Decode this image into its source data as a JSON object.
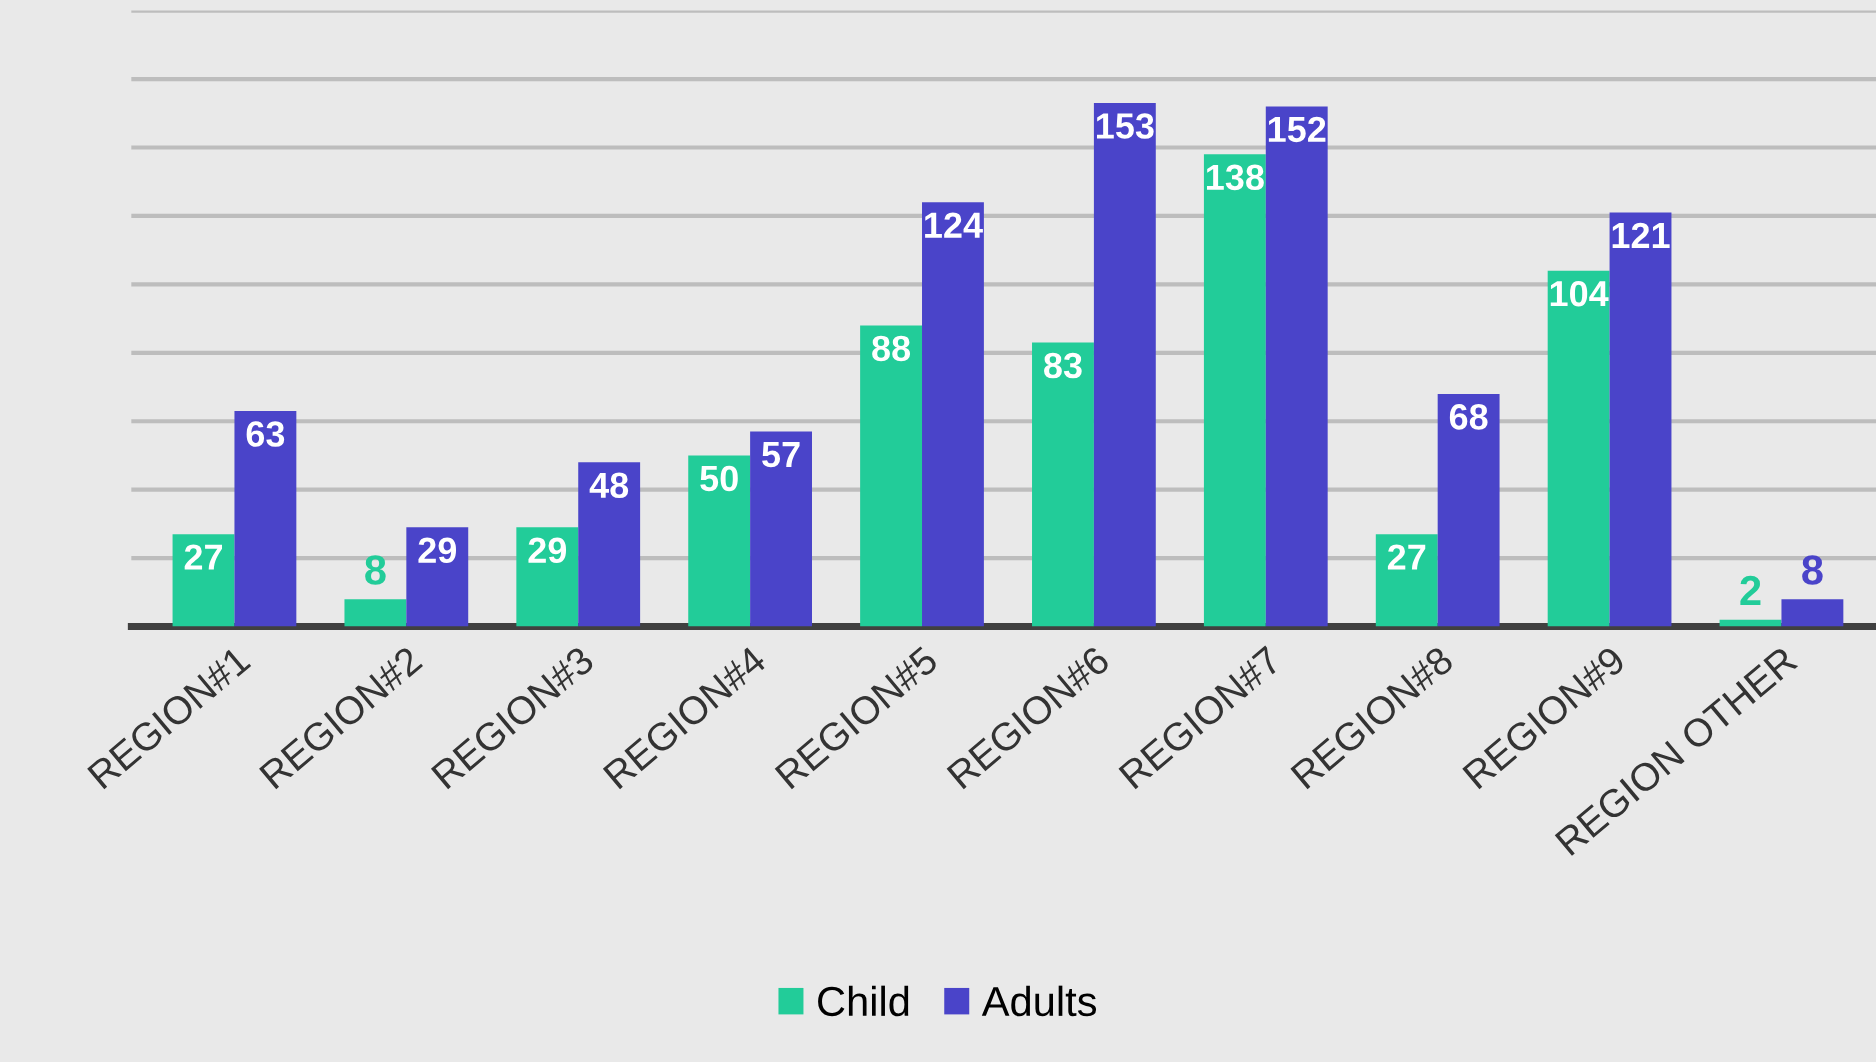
{
  "chart_data": {
    "type": "bar",
    "categories": [
      "REGION#1",
      "REGION#2",
      "REGION#3",
      "REGION#4",
      "REGION#5",
      "REGION#6",
      "REGION#7",
      "REGION#8",
      "REGION#9",
      "REGION OTHER"
    ],
    "series": [
      {
        "name": "Child",
        "color": "#22cc99",
        "values": [
          27,
          8,
          29,
          50,
          88,
          83,
          138,
          27,
          104,
          2
        ]
      },
      {
        "name": "Adults",
        "color": "#4a44c9",
        "values": [
          63,
          29,
          48,
          57,
          124,
          153,
          152,
          68,
          121,
          8
        ]
      }
    ],
    "ylim": [
      0,
      180
    ],
    "yticks": [
      {
        "value": 0,
        "label": null
      },
      {
        "value": 20,
        "label": null
      },
      {
        "value": 40,
        "label": null
      },
      {
        "value": 60,
        "label": null
      },
      {
        "value": 80,
        "label": null
      },
      {
        "value": 100,
        "label": null
      },
      {
        "value": 120,
        "label": null
      },
      {
        "value": 140,
        "label": null
      },
      {
        "value": 160,
        "label": null
      },
      {
        "value": 180,
        "label": null
      }
    ],
    "grid": "y",
    "tick_labels": "x",
    "data_labels": true,
    "legend": "bottom"
  }
}
